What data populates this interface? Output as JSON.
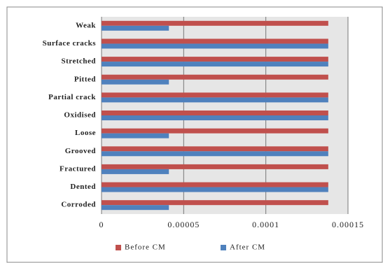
{
  "chart_data": {
    "type": "hbar",
    "categories": [
      "Weak",
      "Surface cracks",
      "Stretched",
      "Pitted",
      "Partial crack",
      "Oxidised",
      "Loose",
      "Grooved",
      "Fractured",
      "Dented",
      "Corroded"
    ],
    "series": [
      {
        "name": "Before CM",
        "color": "#c0504d",
        "values": [
          0.000138,
          0.000138,
          0.000138,
          0.000138,
          0.000138,
          0.000138,
          0.000138,
          0.000138,
          0.000138,
          0.000138,
          0.000138
        ]
      },
      {
        "name": "After CM",
        "color": "#4f81bd",
        "values": [
          4.1e-05,
          0.000138,
          0.000138,
          4.1e-05,
          0.000138,
          0.000138,
          4.1e-05,
          0.000138,
          4.1e-05,
          0.000138,
          4.1e-05
        ]
      }
    ],
    "xlim": [
      0,
      0.00015
    ],
    "xticks": [
      0,
      5e-05,
      0.0001,
      0.00015
    ],
    "grid": true,
    "legend": "bottom"
  }
}
